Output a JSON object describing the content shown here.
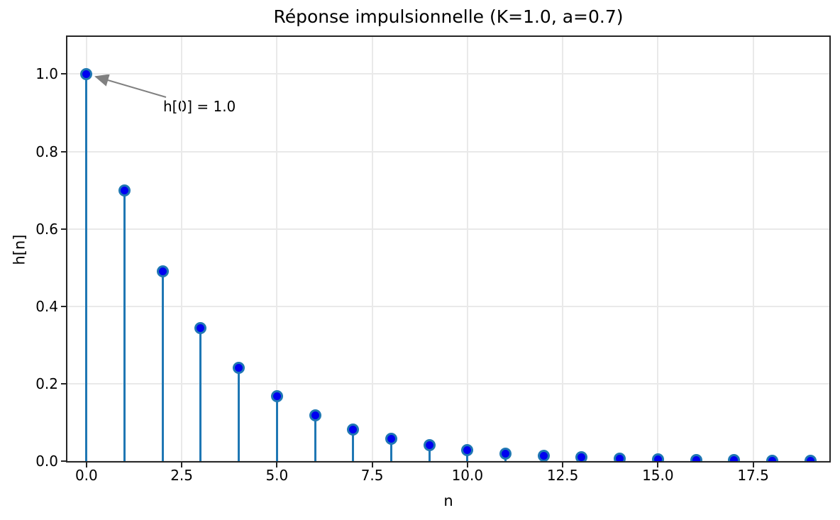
{
  "figure": {
    "title": "Réponse impulsionnelle (K=1.0, a=0.7)",
    "xlabel": "n",
    "ylabel": "h[n]"
  },
  "chart_data": {
    "type": "scatter",
    "style": "stem",
    "title": "Réponse impulsionnelle (K=1.0, a=0.7)",
    "xlabel": "n",
    "ylabel": "h[n]",
    "x": [
      0,
      1,
      2,
      3,
      4,
      5,
      6,
      7,
      8,
      9,
      10,
      11,
      12,
      13,
      14,
      15,
      16,
      17,
      18,
      19
    ],
    "y": [
      1.0,
      0.7,
      0.49,
      0.343,
      0.2401,
      0.16807,
      0.117649,
      0.082354,
      0.057648,
      0.040354,
      0.028248,
      0.019773,
      0.013841,
      0.009689,
      0.006782,
      0.004748,
      0.003323,
      0.002326,
      0.001628,
      0.00114
    ],
    "xlim": [
      -0.5,
      19.5
    ],
    "ylim": [
      0,
      1.096
    ],
    "xtick_values": [
      0,
      2.5,
      5,
      7.5,
      10,
      12.5,
      15,
      17.5
    ],
    "xtick_labels": [
      "0.0",
      "2.5",
      "5.0",
      "7.5",
      "10.0",
      "12.5",
      "15.0",
      "17.5"
    ],
    "ytick_values": [
      0,
      0.2,
      0.4,
      0.6,
      0.8,
      1.0
    ],
    "ytick_labels": [
      "0.0",
      "0.2",
      "0.4",
      "0.6",
      "0.8",
      "1.0"
    ],
    "grid": true,
    "legend": null,
    "annotations": [
      {
        "text": "h[0] = 1.0",
        "xy": [
          0,
          1.0
        ],
        "arrow": true
      }
    ],
    "colors": {
      "stem": "#1f77b4",
      "marker_face": "#0000f0",
      "marker_edge": "#1f77b4",
      "grid": "#e9e9e9",
      "spine": "#262626",
      "arrow": "#808080",
      "text": "#000000",
      "background": "#ffffff"
    }
  }
}
